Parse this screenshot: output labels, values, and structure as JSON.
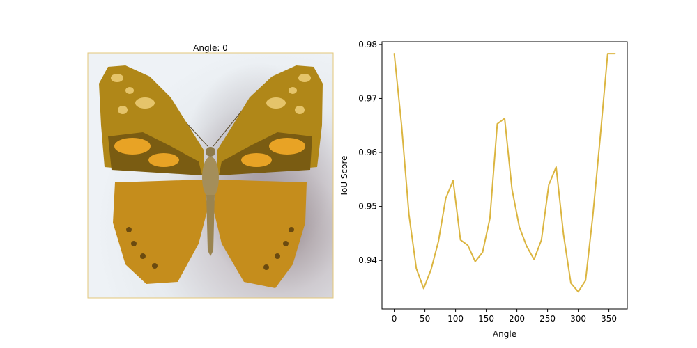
{
  "image_panel": {
    "title": "Angle: 0",
    "border_color": "#e3c77a",
    "tint_color": "#d9a21e"
  },
  "chart_data": {
    "type": "line",
    "title": "",
    "xlabel": "Angle",
    "ylabel": "IoU Score",
    "xlim": [
      -20,
      380
    ],
    "ylim": [
      0.931,
      0.9805
    ],
    "xticks": [
      0,
      50,
      100,
      150,
      200,
      250,
      300,
      350
    ],
    "yticks": [
      0.94,
      0.95,
      0.96,
      0.97,
      0.98
    ],
    "ytick_labels": [
      "0.94",
      "0.95",
      "0.96",
      "0.97",
      "0.98"
    ],
    "grid": false,
    "series": [
      {
        "color": "#dbb540",
        "x": [
          0,
          12,
          24,
          36,
          48,
          60,
          72,
          84,
          96,
          108,
          120,
          132,
          144,
          156,
          168,
          180,
          192,
          204,
          216,
          228,
          240,
          252,
          264,
          276,
          288,
          300,
          312,
          324,
          336,
          348,
          360
        ],
        "values": [
          0.9783,
          0.965,
          0.9485,
          0.9385,
          0.9348,
          0.9383,
          0.9435,
          0.9515,
          0.9548,
          0.9438,
          0.9428,
          0.9398,
          0.9415,
          0.9478,
          0.9653,
          0.9663,
          0.9532,
          0.9462,
          0.9426,
          0.9402,
          0.9438,
          0.954,
          0.9573,
          0.9448,
          0.9358,
          0.9342,
          0.9363,
          0.9485,
          0.963,
          0.9783,
          0.9783
        ]
      }
    ]
  }
}
